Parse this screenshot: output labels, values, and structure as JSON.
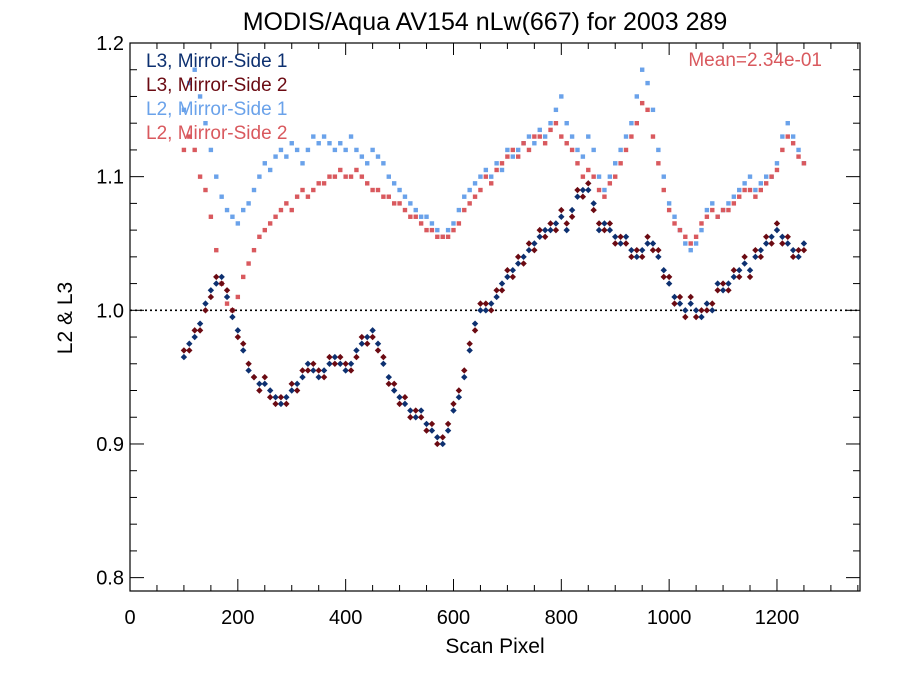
{
  "chart_data": {
    "type": "scatter",
    "title": "MODIS/Aqua AV154 nLw(667) for 2003 289",
    "xlabel": "Scan Pixel",
    "ylabel": "L2 & L3",
    "xlim": [
      0,
      1354
    ],
    "ylim": [
      0.79,
      1.2
    ],
    "x_ticks": [
      {
        "value": 0,
        "label": "0"
      },
      {
        "value": 200,
        "label": "200"
      },
      {
        "value": 400,
        "label": "400"
      },
      {
        "value": 600,
        "label": "600"
      },
      {
        "value": 800,
        "label": "800"
      },
      {
        "value": 1000,
        "label": "1000"
      },
      {
        "value": 1200,
        "label": "1200"
      }
    ],
    "y_ticks": [
      {
        "value": 0.8,
        "label": "0.8"
      },
      {
        "value": 0.9,
        "label": "0.9"
      },
      {
        "value": 1.0,
        "label": "1.0"
      },
      {
        "value": 1.1,
        "label": "1.1"
      },
      {
        "value": 1.2,
        "label": "1.2"
      }
    ],
    "x_minor_step": 50,
    "y_minor_step": 0.02,
    "reference_line": {
      "y": 1.0,
      "style": "dotted"
    },
    "annotation": {
      "text": "Mean=2.34e-01",
      "color": "#d9595e"
    },
    "legend_position": "top-left",
    "grid": false,
    "series": [
      {
        "name": "L3, Mirror-Side 1",
        "color": "#0d3070",
        "marker": "diamond",
        "x": [
          100,
          110,
          120,
          130,
          140,
          150,
          160,
          170,
          180,
          190,
          200,
          210,
          220,
          230,
          240,
          250,
          260,
          270,
          280,
          290,
          300,
          310,
          320,
          330,
          340,
          350,
          360,
          370,
          380,
          390,
          400,
          410,
          420,
          430,
          440,
          450,
          460,
          470,
          480,
          490,
          500,
          510,
          520,
          530,
          540,
          550,
          560,
          570,
          580,
          590,
          600,
          610,
          620,
          630,
          640,
          650,
          660,
          670,
          680,
          690,
          700,
          710,
          720,
          730,
          740,
          750,
          760,
          770,
          780,
          790,
          800,
          810,
          820,
          830,
          840,
          850,
          860,
          870,
          880,
          890,
          900,
          910,
          920,
          930,
          940,
          950,
          960,
          970,
          980,
          990,
          1000,
          1010,
          1020,
          1030,
          1040,
          1050,
          1060,
          1070,
          1080,
          1090,
          1100,
          1110,
          1120,
          1130,
          1140,
          1150,
          1160,
          1170,
          1180,
          1190,
          1200,
          1210,
          1220,
          1230,
          1240,
          1250
        ],
        "y": [
          0.965,
          0.975,
          0.98,
          0.99,
          1.005,
          1.015,
          1.02,
          1.025,
          1.01,
          0.995,
          0.985,
          0.97,
          0.955,
          0.95,
          0.945,
          0.945,
          0.94,
          0.935,
          0.93,
          0.935,
          0.94,
          0.945,
          0.95,
          0.96,
          0.955,
          0.95,
          0.955,
          0.96,
          0.965,
          0.96,
          0.955,
          0.96,
          0.97,
          0.975,
          0.98,
          0.985,
          0.975,
          0.96,
          0.95,
          0.94,
          0.935,
          0.93,
          0.925,
          0.92,
          0.925,
          0.915,
          0.91,
          0.905,
          0.9,
          0.91,
          0.925,
          0.935,
          0.95,
          0.97,
          0.99,
          1.0,
          1.0,
          1.005,
          1.01,
          1.02,
          1.025,
          1.03,
          1.035,
          1.04,
          1.045,
          1.05,
          1.055,
          1.06,
          1.06,
          1.065,
          1.07,
          1.06,
          1.075,
          1.085,
          1.09,
          1.09,
          1.08,
          1.06,
          1.065,
          1.06,
          1.055,
          1.05,
          1.055,
          1.045,
          1.04,
          1.045,
          1.05,
          1.05,
          1.04,
          1.03,
          1.02,
          1.01,
          1.005,
          1.0,
          1.005,
          1.0,
          0.995,
          1.005,
          1.0,
          1.02,
          1.015,
          1.02,
          1.025,
          1.03,
          1.035,
          1.03,
          1.04,
          1.045,
          1.05,
          1.055,
          1.06,
          1.055,
          1.05,
          1.045,
          1.04,
          1.05
        ]
      },
      {
        "name": "L3, Mirror-Side 2",
        "color": "#6b0a12",
        "marker": "diamond",
        "x": [
          100,
          110,
          120,
          130,
          140,
          150,
          160,
          170,
          180,
          190,
          200,
          210,
          220,
          230,
          240,
          250,
          260,
          270,
          280,
          290,
          300,
          310,
          320,
          330,
          340,
          350,
          360,
          370,
          380,
          390,
          400,
          410,
          420,
          430,
          440,
          450,
          460,
          470,
          480,
          490,
          500,
          510,
          520,
          530,
          540,
          550,
          560,
          570,
          580,
          590,
          600,
          610,
          620,
          630,
          640,
          650,
          660,
          670,
          680,
          690,
          700,
          710,
          720,
          730,
          740,
          750,
          760,
          770,
          780,
          790,
          800,
          810,
          820,
          830,
          840,
          850,
          860,
          870,
          880,
          890,
          900,
          910,
          920,
          930,
          940,
          950,
          960,
          970,
          980,
          990,
          1000,
          1010,
          1020,
          1030,
          1040,
          1050,
          1060,
          1070,
          1080,
          1090,
          1100,
          1110,
          1120,
          1130,
          1140,
          1150,
          1160,
          1170,
          1180,
          1190,
          1200,
          1210,
          1220,
          1230,
          1240,
          1250
        ],
        "y": [
          0.97,
          0.97,
          0.985,
          0.985,
          1.0,
          1.01,
          1.025,
          1.02,
          1.015,
          1.0,
          0.98,
          0.975,
          0.96,
          0.95,
          0.94,
          0.95,
          0.935,
          0.93,
          0.935,
          0.93,
          0.945,
          0.94,
          0.955,
          0.955,
          0.96,
          0.955,
          0.95,
          0.965,
          0.96,
          0.965,
          0.96,
          0.955,
          0.965,
          0.98,
          0.975,
          0.98,
          0.97,
          0.965,
          0.945,
          0.945,
          0.93,
          0.935,
          0.92,
          0.925,
          0.92,
          0.91,
          0.915,
          0.9,
          0.905,
          0.915,
          0.93,
          0.94,
          0.955,
          0.975,
          0.985,
          1.005,
          1.005,
          1.0,
          1.015,
          1.015,
          1.03,
          1.025,
          1.04,
          1.035,
          1.05,
          1.045,
          1.06,
          1.055,
          1.065,
          1.06,
          1.075,
          1.065,
          1.07,
          1.09,
          1.085,
          1.095,
          1.075,
          1.065,
          1.06,
          1.065,
          1.05,
          1.055,
          1.05,
          1.04,
          1.045,
          1.04,
          1.055,
          1.045,
          1.045,
          1.025,
          1.025,
          1.005,
          1.01,
          0.995,
          1.01,
          0.995,
          1.0,
          1.0,
          1.005,
          1.015,
          1.02,
          1.015,
          1.03,
          1.025,
          1.04,
          1.025,
          1.045,
          1.04,
          1.055,
          1.05,
          1.065,
          1.05,
          1.055,
          1.04,
          1.045,
          1.045
        ]
      },
      {
        "name": "L2, Mirror-Side 1",
        "color": "#6aa2ea",
        "marker": "square",
        "x": [
          100,
          110,
          120,
          130,
          140,
          150,
          160,
          170,
          180,
          190,
          200,
          210,
          220,
          230,
          240,
          250,
          260,
          270,
          280,
          290,
          300,
          310,
          320,
          330,
          340,
          350,
          360,
          370,
          380,
          390,
          400,
          410,
          420,
          430,
          440,
          450,
          460,
          470,
          480,
          490,
          500,
          510,
          520,
          530,
          540,
          550,
          560,
          570,
          580,
          590,
          600,
          610,
          620,
          630,
          640,
          650,
          660,
          670,
          680,
          690,
          700,
          710,
          720,
          730,
          740,
          750,
          760,
          770,
          780,
          790,
          800,
          810,
          820,
          830,
          840,
          850,
          860,
          870,
          880,
          890,
          900,
          910,
          920,
          930,
          940,
          950,
          960,
          970,
          980,
          990,
          1000,
          1010,
          1020,
          1030,
          1040,
          1050,
          1060,
          1070,
          1080,
          1090,
          1100,
          1110,
          1120,
          1130,
          1140,
          1150,
          1160,
          1170,
          1180,
          1190,
          1200,
          1210,
          1220,
          1230,
          1240,
          1250
        ],
        "y": [
          1.15,
          1.17,
          1.18,
          1.16,
          1.14,
          1.12,
          1.1,
          1.085,
          1.075,
          1.07,
          1.065,
          1.075,
          1.08,
          1.09,
          1.1,
          1.11,
          1.105,
          1.115,
          1.12,
          1.115,
          1.125,
          1.12,
          1.11,
          1.12,
          1.13,
          1.125,
          1.13,
          1.125,
          1.12,
          1.125,
          1.12,
          1.13,
          1.12,
          1.115,
          1.11,
          1.12,
          1.115,
          1.11,
          1.1,
          1.095,
          1.09,
          1.085,
          1.08,
          1.075,
          1.07,
          1.07,
          1.065,
          1.06,
          1.055,
          1.06,
          1.065,
          1.075,
          1.085,
          1.09,
          1.095,
          1.1,
          1.105,
          1.1,
          1.11,
          1.105,
          1.12,
          1.115,
          1.12,
          1.125,
          1.13,
          1.125,
          1.135,
          1.13,
          1.14,
          1.15,
          1.16,
          1.14,
          1.13,
          1.12,
          1.115,
          1.13,
          1.12,
          1.1,
          1.09,
          1.1,
          1.11,
          1.12,
          1.13,
          1.14,
          1.16,
          1.18,
          1.17,
          1.15,
          1.12,
          1.1,
          1.08,
          1.07,
          1.06,
          1.05,
          1.045,
          1.05,
          1.06,
          1.075,
          1.08,
          1.07,
          1.075,
          1.08,
          1.085,
          1.09,
          1.095,
          1.1,
          1.09,
          1.095,
          1.1,
          1.1,
          1.11,
          1.13,
          1.14,
          1.13,
          1.12,
          1.11
        ]
      },
      {
        "name": "L2, Mirror-Side 2",
        "color": "#d9595e",
        "marker": "square",
        "x": [
          100,
          110,
          120,
          130,
          140,
          150,
          160,
          170,
          180,
          190,
          200,
          210,
          220,
          230,
          240,
          250,
          260,
          270,
          280,
          290,
          300,
          310,
          320,
          330,
          340,
          350,
          360,
          370,
          380,
          390,
          400,
          410,
          420,
          430,
          440,
          450,
          460,
          470,
          480,
          490,
          500,
          510,
          520,
          530,
          540,
          550,
          560,
          570,
          580,
          590,
          600,
          610,
          620,
          630,
          640,
          650,
          660,
          670,
          680,
          690,
          700,
          710,
          720,
          730,
          740,
          750,
          760,
          770,
          780,
          790,
          800,
          810,
          820,
          830,
          840,
          850,
          860,
          870,
          880,
          890,
          900,
          910,
          920,
          930,
          940,
          950,
          960,
          970,
          980,
          990,
          1000,
          1010,
          1020,
          1030,
          1040,
          1050,
          1060,
          1070,
          1080,
          1090,
          1100,
          1110,
          1120,
          1130,
          1140,
          1150,
          1160,
          1170,
          1180,
          1190,
          1200,
          1210,
          1220,
          1230,
          1240,
          1250
        ],
        "y": [
          1.12,
          1.13,
          1.12,
          1.1,
          1.09,
          1.07,
          1.045,
          1.02,
          1.005,
          1.0,
          1.01,
          1.025,
          1.035,
          1.045,
          1.055,
          1.06,
          1.065,
          1.07,
          1.075,
          1.08,
          1.075,
          1.085,
          1.09,
          1.085,
          1.09,
          1.095,
          1.095,
          1.1,
          1.1,
          1.105,
          1.1,
          1.1,
          1.105,
          1.1,
          1.095,
          1.09,
          1.09,
          1.085,
          1.085,
          1.08,
          1.08,
          1.075,
          1.07,
          1.07,
          1.065,
          1.06,
          1.06,
          1.055,
          1.055,
          1.055,
          1.06,
          1.065,
          1.075,
          1.08,
          1.085,
          1.09,
          1.1,
          1.095,
          1.105,
          1.11,
          1.115,
          1.12,
          1.115,
          1.125,
          1.12,
          1.13,
          1.13,
          1.125,
          1.135,
          1.14,
          1.13,
          1.125,
          1.12,
          1.11,
          1.1,
          1.105,
          1.1,
          1.09,
          1.085,
          1.095,
          1.1,
          1.11,
          1.12,
          1.13,
          1.14,
          1.155,
          1.15,
          1.13,
          1.11,
          1.09,
          1.075,
          1.065,
          1.06,
          1.055,
          1.05,
          1.055,
          1.065,
          1.07,
          1.075,
          1.07,
          1.075,
          1.075,
          1.08,
          1.085,
          1.09,
          1.09,
          1.085,
          1.09,
          1.095,
          1.1,
          1.105,
          1.12,
          1.13,
          1.125,
          1.115,
          1.11
        ]
      }
    ]
  }
}
